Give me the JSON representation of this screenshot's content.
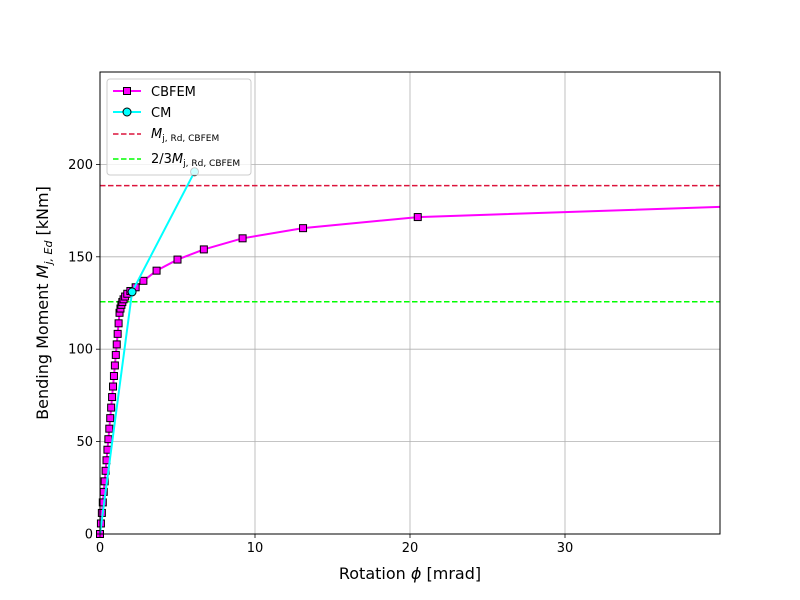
{
  "chart_data": {
    "type": "line",
    "xlabel_prefix": "Rotation ",
    "xlabel_symbol": "ϕ",
    "xlabel_unit": " [mrad]",
    "ylabel_prefix": "Bending Moment ",
    "ylabel_symbol": "M",
    "ylabel_subscript": "j, Ed",
    "ylabel_unit": " [kNm]",
    "xlim": [
      0,
      40
    ],
    "ylim": [
      0,
      250
    ],
    "xticks": [
      0,
      10,
      20,
      30
    ],
    "yticks": [
      0,
      50,
      100,
      150,
      200
    ],
    "grid": true,
    "legend_position": "top-left",
    "series": [
      {
        "name": "CBFEM",
        "color": "#ff00ff",
        "marker": "square",
        "x": [
          0.0,
          0.06,
          0.12,
          0.18,
          0.24,
          0.3,
          0.36,
          0.42,
          0.48,
          0.54,
          0.6,
          0.66,
          0.72,
          0.78,
          0.84,
          0.9,
          0.96,
          1.02,
          1.08,
          1.14,
          1.2,
          1.26,
          1.32,
          1.38,
          1.44,
          1.52,
          1.62,
          1.76,
          1.96,
          2.3,
          2.8,
          3.65,
          5.0,
          6.7,
          9.2,
          13.1,
          20.5,
          40.0
        ],
        "y": [
          0,
          5.7,
          11.4,
          17.1,
          22.8,
          28.5,
          34.2,
          39.9,
          45.6,
          51.3,
          57.0,
          62.7,
          68.4,
          74.1,
          79.8,
          85.5,
          91.2,
          96.9,
          102.6,
          108.3,
          114.0,
          119.7,
          122.0,
          124.0,
          125.5,
          127.0,
          128.5,
          130.0,
          131.5,
          133.5,
          137.0,
          142.5,
          148.5,
          154.0,
          160.0,
          165.5,
          171.5,
          177.0
        ],
        "marked": [
          true,
          true,
          true,
          true,
          true,
          true,
          true,
          true,
          true,
          true,
          true,
          true,
          true,
          true,
          true,
          true,
          true,
          true,
          true,
          true,
          true,
          true,
          true,
          true,
          true,
          true,
          true,
          true,
          true,
          true,
          true,
          true,
          true,
          true,
          true,
          true,
          true,
          false
        ]
      },
      {
        "name": "CM",
        "color": "#00ffff",
        "marker": "circle",
        "x": [
          0.0,
          2.07,
          6.1
        ],
        "y": [
          0,
          131.0,
          196.0
        ],
        "marked": [
          false,
          true,
          true
        ]
      }
    ],
    "reference_lines": [
      {
        "legend_prefix": "",
        "legend_symbol": "M",
        "legend_subscript": "j, Rd, CBFEM",
        "value": 188.5,
        "color": "#dc143c",
        "style": "dashed"
      },
      {
        "legend_prefix": "2/3",
        "legend_symbol": "M",
        "legend_subscript": "j, Rd, CBFEM",
        "value": 125.7,
        "color": "#00ff00",
        "style": "dashed"
      }
    ]
  }
}
